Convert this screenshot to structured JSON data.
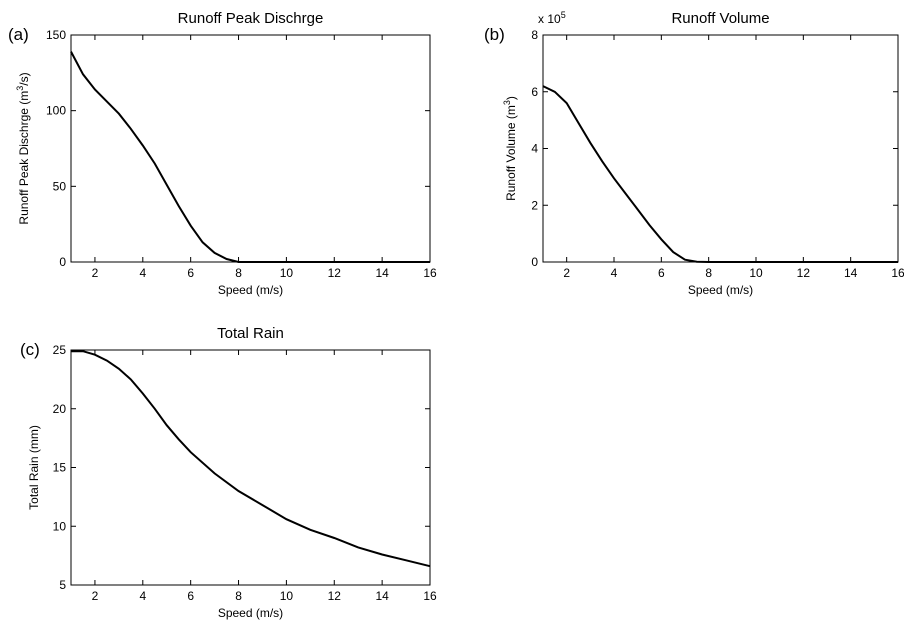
{
  "chart_data": [
    {
      "id": "a",
      "type": "line",
      "panel_label": "(a)",
      "title": "Runoff Peak Dischrge",
      "xlabel": "Speed (m/s)",
      "ylabel_main": "Runoff Peak Dischrge (m",
      "ylabel_sup": "3",
      "ylabel_end": "/s)",
      "xlim": [
        1,
        16
      ],
      "ylim": [
        0,
        150
      ],
      "xticks": [
        2,
        4,
        6,
        8,
        10,
        12,
        14,
        16
      ],
      "yticks": [
        0,
        50,
        100,
        150
      ],
      "exponent_label": "",
      "x": [
        1,
        1.5,
        2,
        2.5,
        3,
        3.5,
        4,
        4.5,
        5,
        5.5,
        6,
        6.5,
        7,
        7.5,
        8,
        9,
        10,
        11,
        12,
        13,
        14,
        15,
        16
      ],
      "y": [
        139,
        124,
        114,
        106,
        98,
        88,
        77,
        65,
        51,
        37,
        24,
        13,
        6,
        2,
        0,
        0,
        0,
        0,
        0,
        0,
        0,
        0,
        0
      ]
    },
    {
      "id": "b",
      "type": "line",
      "panel_label": "(b)",
      "title": "Runoff Volume",
      "xlabel": "Speed (m/s)",
      "ylabel_main": "Runoff Volume (m",
      "ylabel_sup": "3",
      "ylabel_end": ")",
      "xlim": [
        1,
        16
      ],
      "ylim": [
        0,
        8
      ],
      "xticks": [
        2,
        4,
        6,
        8,
        10,
        12,
        14,
        16
      ],
      "yticks": [
        0,
        2,
        4,
        6,
        8
      ],
      "exponent_label": "x 10",
      "exponent_sup": "5",
      "x": [
        1,
        1.5,
        2,
        2.5,
        3,
        3.5,
        4,
        4.5,
        5,
        5.5,
        6,
        6.5,
        7,
        7.5,
        8,
        9,
        10,
        11,
        12,
        13,
        14,
        15,
        16
      ],
      "y": [
        6.2,
        6.0,
        5.6,
        4.9,
        4.2,
        3.55,
        2.95,
        2.4,
        1.85,
        1.3,
        0.8,
        0.35,
        0.08,
        0.01,
        0,
        0,
        0,
        0,
        0,
        0,
        0,
        0,
        0
      ]
    },
    {
      "id": "c",
      "type": "line",
      "panel_label": "(c)",
      "title": "Total Rain",
      "xlabel": "Speed (m/s)",
      "ylabel_main": "Total Rain (mm)",
      "ylabel_sup": "",
      "ylabel_end": "",
      "xlim": [
        1,
        16
      ],
      "ylim": [
        5,
        25
      ],
      "xticks": [
        2,
        4,
        6,
        8,
        10,
        12,
        14,
        16
      ],
      "yticks": [
        5,
        10,
        15,
        20,
        25
      ],
      "exponent_label": "",
      "x": [
        1,
        1.5,
        2,
        2.5,
        3,
        3.5,
        4,
        4.5,
        5,
        5.5,
        6,
        7,
        8,
        9,
        10,
        11,
        12,
        13,
        14,
        15,
        16
      ],
      "y": [
        24.9,
        24.9,
        24.6,
        24.1,
        23.4,
        22.5,
        21.3,
        20.0,
        18.6,
        17.4,
        16.3,
        14.5,
        13.0,
        11.8,
        10.6,
        9.7,
        9.0,
        8.2,
        7.6,
        7.1,
        6.6
      ]
    }
  ]
}
